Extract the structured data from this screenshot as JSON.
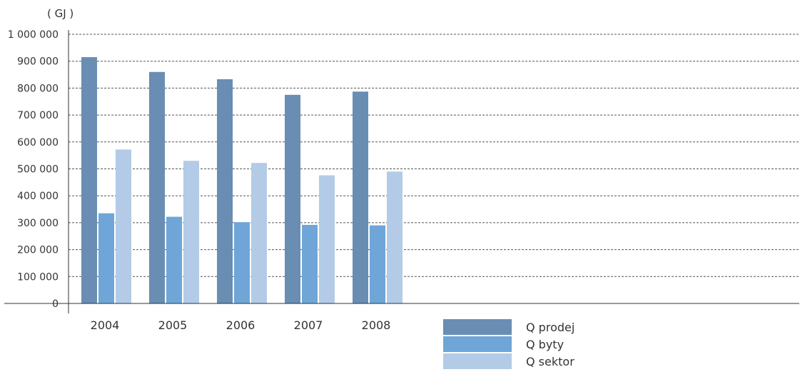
{
  "chart_data": {
    "type": "bar",
    "unit_label": "( GJ )",
    "categories": [
      "2004",
      "2005",
      "2006",
      "2007",
      "2008"
    ],
    "series": [
      {
        "name": "Q prodej",
        "color": "#6a8db3",
        "values": [
          915000,
          860000,
          833000,
          775000,
          787000
        ]
      },
      {
        "name": "Q byty",
        "color": "#6fa6d7",
        "values": [
          335000,
          322000,
          302000,
          292000,
          290000
        ]
      },
      {
        "name": "Q sektor",
        "color": "#b3cbe6",
        "values": [
          572000,
          530000,
          522000,
          476000,
          490000
        ]
      }
    ],
    "ylim": [
      0,
      1000000
    ],
    "yticks": [
      0,
      100000,
      200000,
      300000,
      400000,
      500000,
      600000,
      700000,
      800000,
      900000,
      1000000
    ],
    "ytick_labels": [
      "0",
      "100 000",
      "200 000",
      "300 000",
      "400 000",
      "500 000",
      "600 000",
      "700 000",
      "800 000",
      "900 000",
      "1 000 000"
    ],
    "grid": true,
    "grid_style": "dashed",
    "legend_position": "bottom-center"
  }
}
